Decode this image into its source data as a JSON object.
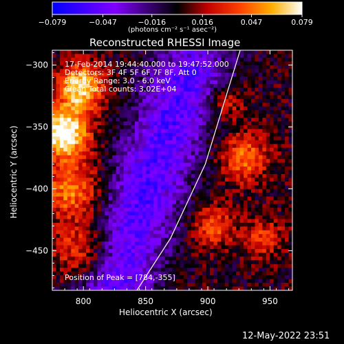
{
  "chart_data": {
    "type": "heatmap",
    "title": "Reconstructed RHESSI Image",
    "xlabel": "Heliocentric X (arcsec)",
    "ylabel": "Heliocentric Y (arcsec)",
    "xlim": [
      775,
      968
    ],
    "ylim": [
      -482,
      -288
    ],
    "x_ticks": [
      800,
      850,
      900,
      950
    ],
    "y_ticks": [
      -300,
      -350,
      -400,
      -450
    ],
    "colorbar": {
      "min": -0.079,
      "max": 0.079,
      "ticks": [
        "-0.079",
        "-0.047",
        "-0.016",
        "0.016",
        "0.047",
        "0.079"
      ],
      "unit_label": "(photons cm⁻² s⁻¹ asec⁻²)",
      "colormap": "blue-purple-black-red-yellow-white"
    },
    "info_lines": [
      "17-Feb-2014 19:44:40.000 to 19:47:52.000",
      "Detectors: 3F 4F 5F 6F 7F 8F, Att 0",
      "Energy Range: 3.0 - 6.0 keV",
      "Clean    Total counts: 3.02E+04"
    ],
    "peak_label": "Position of Peak = [784,-355]",
    "peak": [
      784,
      -355
    ],
    "limb_curve": [
      [
        843,
        -482
      ],
      [
        870,
        -440
      ],
      [
        898,
        -380
      ],
      [
        926,
        -288
      ]
    ],
    "regions": [
      {
        "kind": "bright-source",
        "x": 784,
        "y": -355,
        "value": 0.079
      },
      {
        "kind": "bright-source",
        "x": 800,
        "y": -318,
        "value": 0.07
      },
      {
        "kind": "negative-band",
        "x": 860,
        "y": -395,
        "value": -0.06
      },
      {
        "kind": "emission-patch",
        "x": 930,
        "y": -380,
        "value": 0.045
      },
      {
        "kind": "emission-patch",
        "x": 905,
        "y": -430,
        "value": 0.04
      }
    ]
  },
  "footer": {
    "timestamp": "12-May-2022 23:51"
  },
  "colors": {
    "background": "#000000",
    "axis": "#ffffff",
    "limb": "#ffffff"
  }
}
